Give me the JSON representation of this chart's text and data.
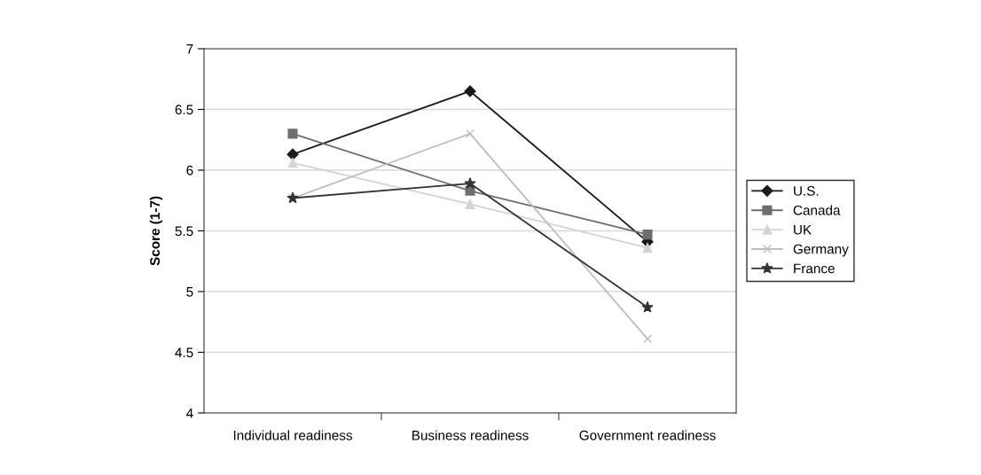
{
  "chart_data": {
    "type": "line",
    "ylabel": "Score (1-7)",
    "categories": [
      "Individual readiness",
      "Business readiness",
      "Government readiness"
    ],
    "series": [
      {
        "name": "U.S.",
        "color": "#1a1a1a",
        "marker": "diamond",
        "values": [
          6.13,
          6.65,
          5.41
        ]
      },
      {
        "name": "Canada",
        "color": "#6e6e6e",
        "marker": "square",
        "values": [
          6.3,
          5.83,
          5.47
        ]
      },
      {
        "name": "UK",
        "color": "#d4d4d4",
        "marker": "triangle",
        "values": [
          6.06,
          5.72,
          5.36
        ]
      },
      {
        "name": "Germany",
        "color": "#bdbdbd",
        "marker": "cross",
        "values": [
          5.77,
          6.3,
          4.61
        ]
      },
      {
        "name": "France",
        "color": "#333333",
        "marker": "star",
        "values": [
          5.77,
          5.89,
          4.87
        ]
      }
    ],
    "ylim": [
      4,
      7
    ],
    "yticks": [
      4,
      4.5,
      5,
      5.5,
      6,
      6.5,
      7
    ],
    "grid": "y",
    "legend": "right",
    "line_style": "solid"
  }
}
